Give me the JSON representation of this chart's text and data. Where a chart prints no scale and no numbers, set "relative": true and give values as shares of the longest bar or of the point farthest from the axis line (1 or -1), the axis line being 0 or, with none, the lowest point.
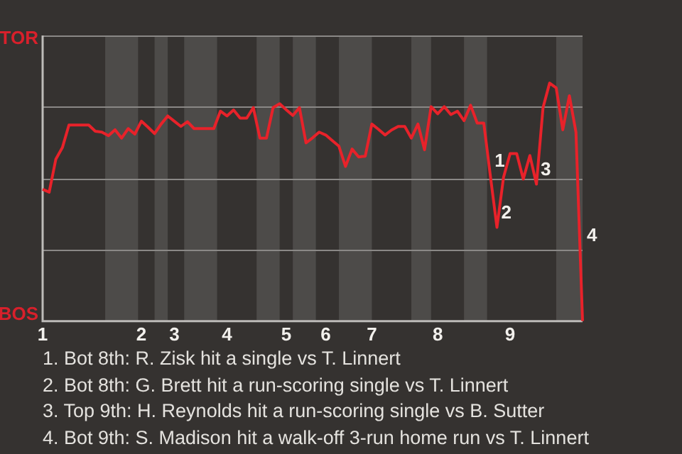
{
  "chart_data": {
    "type": "line",
    "relative": true,
    "categories": [
      "1",
      null,
      null,
      null,
      null,
      null,
      null,
      null,
      null,
      null,
      null,
      null,
      null,
      null,
      null,
      "2",
      null,
      null,
      null,
      null,
      "3",
      null,
      null,
      null,
      null,
      null,
      null,
      null,
      "4",
      null,
      null,
      null,
      null,
      null,
      null,
      null,
      null,
      "5",
      null,
      null,
      null,
      null,
      null,
      "6",
      null,
      null,
      null,
      null,
      null,
      null,
      "7",
      null,
      null,
      null,
      null,
      null,
      null,
      null,
      null,
      null,
      "8",
      null,
      null,
      null,
      null,
      null,
      null,
      null,
      null,
      null,
      null,
      "9",
      null,
      null,
      null,
      null,
      null,
      null,
      null,
      null,
      null,
      null,
      null
    ],
    "series": [
      {
        "color": "#e8222a",
        "values": [
          0.554,
          0.542,
          0.68,
          0.729,
          0.824,
          0.824,
          0.824,
          0.824,
          0.798,
          0.794,
          0.779,
          0.804,
          0.769,
          0.809,
          0.786,
          0.84,
          0.815,
          0.788,
          0.828,
          0.862,
          0.84,
          0.818,
          0.838,
          0.809,
          0.809,
          0.809,
          0.809,
          0.882,
          0.862,
          0.887,
          0.853,
          0.853,
          0.897,
          0.769,
          0.769,
          0.897,
          0.913,
          0.888,
          0.864,
          0.897,
          0.749,
          0.77,
          0.794,
          0.782,
          0.758,
          0.735,
          0.65,
          0.723,
          0.69,
          0.693,
          0.828,
          0.806,
          0.782,
          0.803,
          0.818,
          0.818,
          0.769,
          0.828,
          0.72,
          0.901,
          0.871,
          0.901,
          0.868,
          0.882,
          0.842,
          0.907,
          0.832,
          0.832,
          0.61,
          0.394,
          0.604,
          0.704,
          0.704,
          0.597,
          0.696,
          0.576,
          0.897,
          1,
          0.98,
          0.804,
          0.947,
          0.794,
          0
        ],
        "name": null
      }
    ],
    "grid": "y",
    "marker": "none",
    "annotations": [
      "TOR",
      "BOS",
      "1",
      "2",
      "3",
      "4",
      "1. Bot 8th: R. Zisk hit a single vs T. Linnert",
      "2. Bot 8th: G. Brett hit a run-scoring single vs T. Linnert",
      "3. Top 9th: H. Reynolds hit a run-scoring single vs B. Sutter",
      "4. Bot 9th: S. Madison hit a walk-off 3-run home run vs T. Linnert"
    ]
  }
}
